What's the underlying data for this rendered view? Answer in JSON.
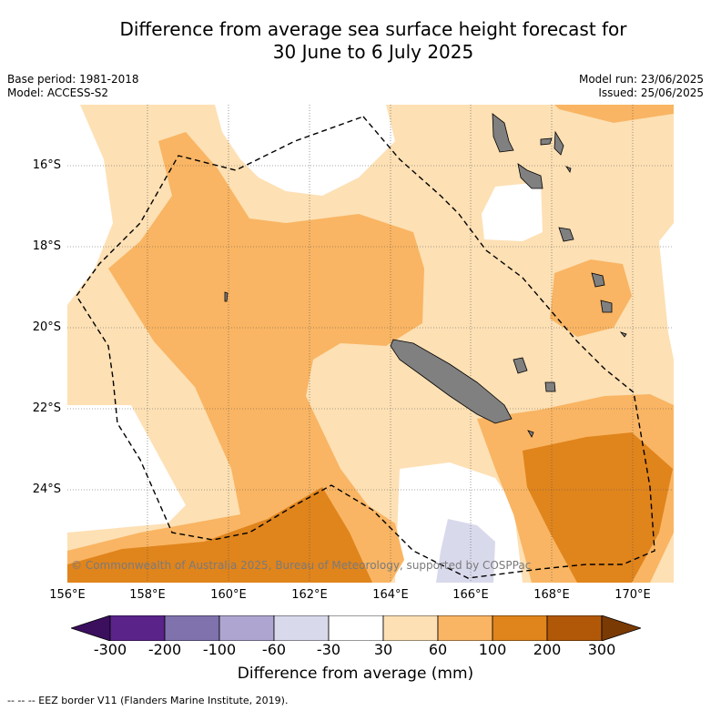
{
  "title_line1": "Difference from average sea surface height forecast for",
  "title_line2": "30 June to 6 July 2025",
  "meta_left": [
    "Base period: 1981-2018",
    "Model: ACCESS-S2"
  ],
  "meta_right": [
    "Model run: 23/06/2025",
    "Issued: 25/06/2025"
  ],
  "lat_labels": [
    "16°S",
    "18°S",
    "20°S",
    "22°S",
    "24°S"
  ],
  "lon_labels": [
    "156°E",
    "158°E",
    "160°E",
    "162°E",
    "164°E",
    "166°E",
    "168°E",
    "170°E"
  ],
  "copyright": "© Commonwealth of Australia 2025, Bureau of Meteorology, supported by COSPPac",
  "colorbar": {
    "ticks": [
      "-300",
      "-200",
      "-100",
      "-60",
      "-30",
      "30",
      "60",
      "100",
      "200",
      "300"
    ],
    "colors": [
      "#3b0f5e",
      "#5a2389",
      "#7f72ad",
      "#aea6d1",
      "#d9d9ec",
      "#ffffff",
      "#fde0b4",
      "#f9b563",
      "#e0841c",
      "#b05808",
      "#7a3a04"
    ],
    "label": "Difference from average (mm)"
  },
  "footnote": "-- -- -- EEZ border V11 (Flanders Marine Institute, 2019).",
  "legend_colors": {
    "land": "#808080",
    "band_30_60": "#fde0b4",
    "band_60_100": "#f9b563",
    "band_100_200": "#e0841c",
    "band_neg30_neg60": "#d9d9ec"
  }
}
